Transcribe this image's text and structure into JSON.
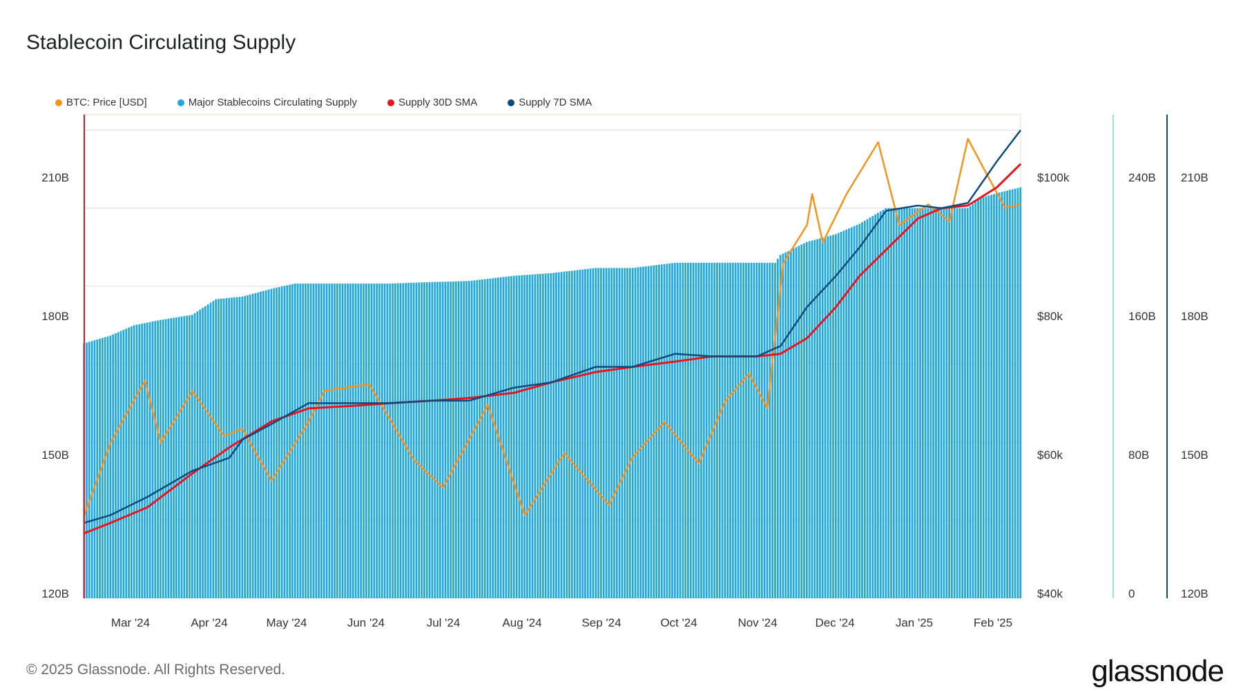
{
  "title": "Stablecoin Circulating Supply",
  "legend": [
    {
      "label": "BTC: Price [USD]",
      "color": "#f7931a"
    },
    {
      "label": "Major Stablecoins Circulating Supply",
      "color": "#1ea7e1"
    },
    {
      "label": "Supply 30D SMA",
      "color": "#e8141c"
    },
    {
      "label": "Supply 7D SMA",
      "color": "#0b4a7a"
    }
  ],
  "footer": {
    "copyright": "© 2025 Glassnode. All Rights Reserved.",
    "logo": "glassnode"
  },
  "chart_data": {
    "type": "bar",
    "x_tick_labels": [
      "Mar '24",
      "Apr '24",
      "May '24",
      "Jun '24",
      "Jul '24",
      "Aug '24",
      "Sep '24",
      "Oct '24",
      "Nov '24",
      "Dec '24",
      "Jan '25",
      "Feb '25"
    ],
    "x_range": [
      "2024-02-20",
      "2025-02-09"
    ],
    "left_axis": {
      "ticks": [
        "120B",
        "150B",
        "180B",
        "210B"
      ],
      "range": [
        120,
        213
      ]
    },
    "price_axis": {
      "ticks": [
        "$40k",
        "$60k",
        "$80k",
        "$100k"
      ],
      "range": [
        40,
        110
      ]
    },
    "axis_160B": {
      "ticks": [
        "0",
        "80B",
        "160B",
        "240B"
      ]
    },
    "axis_sma": {
      "ticks": [
        "120B",
        "150B",
        "180B",
        "210B"
      ]
    },
    "grid": true,
    "legend_position": "top-left",
    "series": [
      {
        "name": "Major Stablecoins Circulating Supply",
        "type": "bar",
        "color": "#1ea7e1",
        "unit": "B",
        "points": [
          [
            "2024-02-20",
            169.0
          ],
          [
            "2024-03-01",
            170.5
          ],
          [
            "2024-03-10",
            172.5
          ],
          [
            "2024-03-20",
            173.5
          ],
          [
            "2024-04-01",
            174.5
          ],
          [
            "2024-04-10",
            177.5
          ],
          [
            "2024-04-20",
            178.0
          ],
          [
            "2024-05-01",
            179.5
          ],
          [
            "2024-05-10",
            180.5
          ],
          [
            "2024-05-20",
            180.5
          ],
          [
            "2024-06-01",
            180.5
          ],
          [
            "2024-06-15",
            180.5
          ],
          [
            "2024-07-01",
            180.8
          ],
          [
            "2024-07-15",
            181.0
          ],
          [
            "2024-08-01",
            182.0
          ],
          [
            "2024-08-15",
            182.5
          ],
          [
            "2024-09-01",
            183.5
          ],
          [
            "2024-09-15",
            183.5
          ],
          [
            "2024-10-01",
            184.5
          ],
          [
            "2024-10-15",
            184.5
          ],
          [
            "2024-11-01",
            184.5
          ],
          [
            "2024-11-08",
            184.5
          ],
          [
            "2024-11-10",
            186.0
          ],
          [
            "2024-11-20",
            188.5
          ],
          [
            "2024-12-01",
            190.0
          ],
          [
            "2024-12-10",
            192.0
          ],
          [
            "2024-12-20",
            195.0
          ],
          [
            "2025-01-01",
            195.0
          ],
          [
            "2025-01-10",
            195.0
          ],
          [
            "2025-01-20",
            195.0
          ],
          [
            "2025-01-25",
            197.0
          ],
          [
            "2025-02-01",
            198.0
          ],
          [
            "2025-02-09",
            199.0
          ]
        ]
      },
      {
        "name": "Supply 30D SMA",
        "type": "line",
        "color": "#e8141c",
        "unit": "B",
        "points": [
          [
            "2024-02-20",
            132.5
          ],
          [
            "2024-03-01",
            134.5
          ],
          [
            "2024-03-15",
            137.5
          ],
          [
            "2024-04-01",
            144.0
          ],
          [
            "2024-04-15",
            149.0
          ],
          [
            "2024-05-01",
            154.0
          ],
          [
            "2024-05-15",
            156.5
          ],
          [
            "2024-06-01",
            157.0
          ],
          [
            "2024-06-15",
            157.5
          ],
          [
            "2024-07-01",
            158.0
          ],
          [
            "2024-07-15",
            158.5
          ],
          [
            "2024-08-01",
            159.5
          ],
          [
            "2024-08-15",
            161.5
          ],
          [
            "2024-09-01",
            163.5
          ],
          [
            "2024-09-15",
            164.5
          ],
          [
            "2024-10-01",
            165.5
          ],
          [
            "2024-10-15",
            166.5
          ],
          [
            "2024-11-01",
            166.5
          ],
          [
            "2024-11-10",
            167.0
          ],
          [
            "2024-11-20",
            170.0
          ],
          [
            "2024-12-01",
            176.0
          ],
          [
            "2024-12-10",
            182.0
          ],
          [
            "2024-12-20",
            187.0
          ],
          [
            "2025-01-01",
            193.0
          ],
          [
            "2025-01-10",
            195.0
          ],
          [
            "2025-01-20",
            195.5
          ],
          [
            "2025-01-31",
            199.0
          ],
          [
            "2025-02-09",
            203.5
          ]
        ]
      },
      {
        "name": "Supply 7D SMA",
        "type": "line",
        "color": "#0b4a7a",
        "unit": "B",
        "points": [
          [
            "2024-02-20",
            134.5
          ],
          [
            "2024-03-01",
            136.0
          ],
          [
            "2024-03-15",
            139.5
          ],
          [
            "2024-04-01",
            144.5
          ],
          [
            "2024-04-15",
            147.0
          ],
          [
            "2024-04-20",
            150.5
          ],
          [
            "2024-05-01",
            153.5
          ],
          [
            "2024-05-15",
            157.5
          ],
          [
            "2024-06-01",
            157.5
          ],
          [
            "2024-06-15",
            157.5
          ],
          [
            "2024-07-01",
            158.0
          ],
          [
            "2024-07-15",
            158.0
          ],
          [
            "2024-08-01",
            160.5
          ],
          [
            "2024-08-15",
            161.5
          ],
          [
            "2024-09-01",
            164.5
          ],
          [
            "2024-09-15",
            164.5
          ],
          [
            "2024-10-01",
            167.0
          ],
          [
            "2024-10-15",
            166.5
          ],
          [
            "2024-11-01",
            166.5
          ],
          [
            "2024-11-10",
            168.5
          ],
          [
            "2024-11-20",
            176.0
          ],
          [
            "2024-12-01",
            182.0
          ],
          [
            "2024-12-10",
            187.5
          ],
          [
            "2024-12-20",
            194.5
          ],
          [
            "2025-01-01",
            195.5
          ],
          [
            "2025-01-10",
            195.0
          ],
          [
            "2025-01-20",
            196.0
          ],
          [
            "2025-01-31",
            204.0
          ],
          [
            "2025-02-09",
            210.0
          ]
        ]
      },
      {
        "name": "BTC: Price [USD]",
        "type": "line",
        "color": "#f7931a",
        "axis": "price",
        "unit": "k",
        "points": [
          [
            "2024-02-20",
            52.0
          ],
          [
            "2024-03-01",
            62.5
          ],
          [
            "2024-03-14",
            71.5
          ],
          [
            "2024-03-20",
            62.5
          ],
          [
            "2024-04-01",
            70.0
          ],
          [
            "2024-04-13",
            63.5
          ],
          [
            "2024-04-20",
            64.5
          ],
          [
            "2024-05-01",
            57.0
          ],
          [
            "2024-05-15",
            65.5
          ],
          [
            "2024-05-21",
            70.0
          ],
          [
            "2024-06-07",
            71.0
          ],
          [
            "2024-06-24",
            60.0
          ],
          [
            "2024-07-05",
            56.0
          ],
          [
            "2024-07-22",
            68.0
          ],
          [
            "2024-08-05",
            52.0
          ],
          [
            "2024-08-20",
            61.0
          ],
          [
            "2024-09-06",
            53.5
          ],
          [
            "2024-09-15",
            60.5
          ],
          [
            "2024-09-27",
            65.5
          ],
          [
            "2024-10-10",
            59.5
          ],
          [
            "2024-10-20",
            68.5
          ],
          [
            "2024-10-29",
            72.5
          ],
          [
            "2024-11-05",
            67.5
          ],
          [
            "2024-11-11",
            88.5
          ],
          [
            "2024-11-20",
            94.0
          ],
          [
            "2024-11-22",
            98.5
          ],
          [
            "2024-11-26",
            91.5
          ],
          [
            "2024-12-05",
            98.5
          ],
          [
            "2024-12-17",
            106.0
          ],
          [
            "2024-12-25",
            94.0
          ],
          [
            "2025-01-05",
            97.0
          ],
          [
            "2025-01-13",
            94.5
          ],
          [
            "2025-01-20",
            106.5
          ],
          [
            "2025-01-27",
            101.5
          ],
          [
            "2025-02-03",
            96.5
          ],
          [
            "2025-02-09",
            97.0
          ]
        ]
      }
    ]
  }
}
